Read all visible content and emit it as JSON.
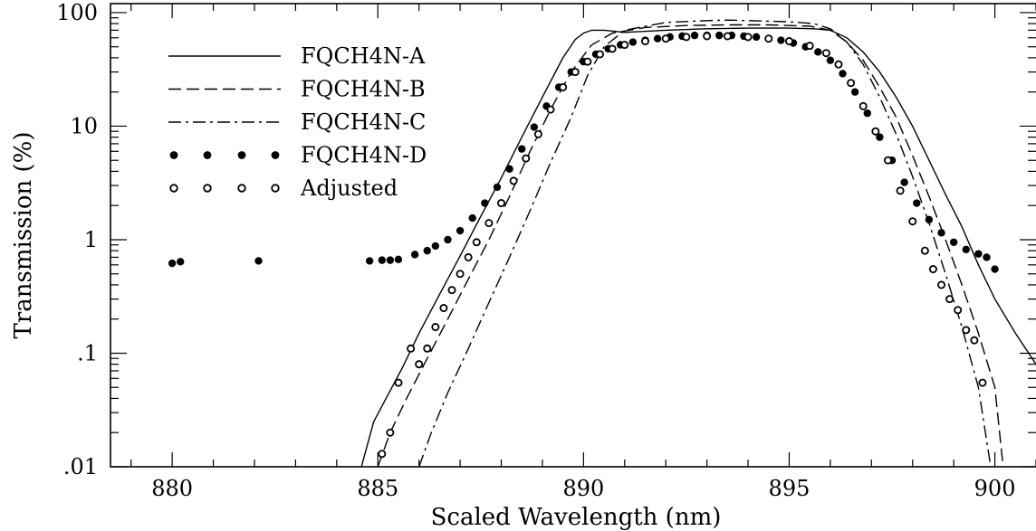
{
  "chart_data": {
    "type": "line",
    "xlabel": "Scaled Wavelength (nm)",
    "ylabel": "Transmission (%)",
    "xlim": [
      878.5,
      901
    ],
    "ylim": [
      0.01,
      120
    ],
    "y_scale": "log",
    "grid": false,
    "legend_position": "top-left",
    "x_ticks": [
      880,
      885,
      890,
      895,
      900
    ],
    "x_tick_labels": [
      "880",
      "885",
      "890",
      "895",
      "900"
    ],
    "y_ticks": [
      0.01,
      0.1,
      1,
      10,
      100
    ],
    "y_tick_labels": [
      ".01",
      ".1",
      "1",
      "10",
      "100"
    ],
    "series": [
      {
        "name": "FQCH4N-A",
        "style": "solid",
        "x": [
          884.6,
          884.9,
          885.2,
          885.6,
          886.0,
          886.5,
          887.0,
          887.5,
          888.0,
          888.5,
          889.0,
          889.5,
          889.8,
          890.0,
          890.2,
          890.5,
          891.0,
          892.0,
          893.0,
          894.0,
          895.0,
          895.6,
          896.0,
          896.4,
          896.8,
          897.2,
          897.6,
          898.0,
          898.4,
          898.8,
          899.2,
          899.6,
          900.0,
          900.5,
          901.0
        ],
        "y": [
          0.01,
          0.025,
          0.04,
          0.075,
          0.15,
          0.33,
          0.72,
          1.6,
          3.5,
          8.0,
          18.0,
          40.0,
          58.0,
          66.0,
          70.0,
          70.0,
          67.0,
          70.0,
          72.0,
          73.0,
          73.0,
          72.0,
          70.0,
          60.0,
          45.0,
          30.0,
          18.0,
          10.0,
          5.0,
          2.5,
          1.3,
          0.6,
          0.3,
          0.15,
          0.08
        ]
      },
      {
        "name": "FQCH4N-B",
        "style": "dashed",
        "x": [
          885.0,
          885.3,
          885.7,
          886.2,
          886.7,
          887.2,
          887.7,
          888.2,
          888.7,
          889.2,
          889.7,
          890.2,
          890.7,
          891.5,
          892.5,
          893.5,
          894.5,
          895.5,
          896.0,
          896.4,
          896.8,
          897.2,
          897.6,
          898.0,
          898.4,
          898.8,
          899.2,
          899.6,
          900.0,
          900.2
        ],
        "y": [
          0.01,
          0.02,
          0.04,
          0.09,
          0.2,
          0.45,
          1.0,
          2.4,
          6.0,
          14.0,
          30.0,
          52.0,
          66.0,
          74.0,
          77.0,
          78.0,
          78.0,
          76.0,
          70.0,
          55.0,
          38.0,
          22.0,
          12.0,
          5.5,
          2.4,
          1.0,
          0.4,
          0.15,
          0.05,
          0.01
        ]
      },
      {
        "name": "FQCH4N-C",
        "style": "dashdot",
        "x": [
          886.0,
          886.3,
          886.7,
          887.2,
          887.7,
          888.2,
          888.7,
          889.2,
          889.7,
          890.1,
          890.5,
          891.0,
          892.0,
          893.0,
          893.5,
          894.0,
          895.0,
          895.6,
          896.0,
          896.4,
          896.8,
          897.2,
          897.6,
          898.0,
          898.4,
          898.8,
          899.2,
          899.6,
          899.9
        ],
        "y": [
          0.01,
          0.02,
          0.045,
          0.11,
          0.28,
          0.7,
          1.8,
          4.8,
          12.0,
          28.0,
          50.0,
          70.0,
          82.0,
          85.0,
          86.0,
          85.0,
          83.0,
          80.0,
          72.0,
          55.0,
          35.0,
          18.0,
          8.5,
          3.6,
          1.4,
          0.5,
          0.17,
          0.05,
          0.01
        ]
      },
      {
        "name": "FQCH4N-D",
        "style": "filled-dots",
        "x": [
          880.0,
          880.2,
          882.1,
          884.8,
          885.1,
          885.3,
          885.5,
          885.9,
          886.2,
          886.4,
          886.7,
          887.0,
          887.3,
          887.6,
          887.9,
          888.2,
          888.5,
          888.8,
          889.1,
          889.4,
          889.7,
          890.0,
          890.3,
          890.6,
          890.9,
          891.2,
          891.5,
          891.8,
          892.1,
          892.4,
          892.7,
          893.0,
          893.3,
          893.6,
          893.9,
          894.2,
          894.5,
          894.8,
          895.1,
          895.4,
          895.7,
          896.0,
          896.3,
          896.6,
          896.9,
          897.2,
          897.5,
          897.8,
          898.1,
          898.4,
          898.7,
          899.0,
          899.3,
          899.6,
          899.8,
          900.0
        ],
        "y": [
          0.62,
          0.64,
          0.65,
          0.65,
          0.66,
          0.66,
          0.67,
          0.74,
          0.8,
          0.88,
          1.0,
          1.2,
          1.55,
          2.1,
          2.9,
          4.2,
          6.3,
          9.8,
          15.0,
          22.0,
          30.0,
          37.0,
          43.0,
          48.0,
          52.0,
          55.0,
          57.0,
          59.0,
          61.0,
          62.0,
          63.0,
          63.0,
          63.0,
          63.0,
          62.0,
          61.0,
          59.0,
          57.0,
          54.0,
          50.0,
          45.0,
          38.0,
          29.0,
          20.0,
          13.0,
          8.0,
          5.0,
          3.2,
          2.1,
          1.5,
          1.15,
          0.95,
          0.82,
          0.75,
          0.7,
          0.55
        ]
      },
      {
        "name": "Adjusted",
        "style": "open-dots",
        "x": [
          885.1,
          885.3,
          885.5,
          885.8,
          886.0,
          886.2,
          886.4,
          886.6,
          886.8,
          887.0,
          887.2,
          887.4,
          887.7,
          888.0,
          888.3,
          888.6,
          888.9,
          889.2,
          889.5,
          889.8,
          890.1,
          890.4,
          890.7,
          891.0,
          891.5,
          892.0,
          892.5,
          893.0,
          893.5,
          894.0,
          894.5,
          895.0,
          895.5,
          895.9,
          896.2,
          896.5,
          896.8,
          897.1,
          897.4,
          897.7,
          898.0,
          898.3,
          898.5,
          898.7,
          898.9,
          899.1,
          899.3,
          899.5,
          899.7
        ],
        "y": [
          0.013,
          0.02,
          0.055,
          0.11,
          0.08,
          0.11,
          0.17,
          0.25,
          0.36,
          0.5,
          0.7,
          0.95,
          1.4,
          2.1,
          3.3,
          5.2,
          8.5,
          14.0,
          22.0,
          30.0,
          37.0,
          43.0,
          48.0,
          52.0,
          56.0,
          59.0,
          61.0,
          62.0,
          62.0,
          61.0,
          59.0,
          56.0,
          51.0,
          44.0,
          35.0,
          24.0,
          15.0,
          9.0,
          5.0,
          2.7,
          1.45,
          0.8,
          0.55,
          0.4,
          0.3,
          0.24,
          0.16,
          0.13,
          0.055
        ]
      }
    ]
  }
}
